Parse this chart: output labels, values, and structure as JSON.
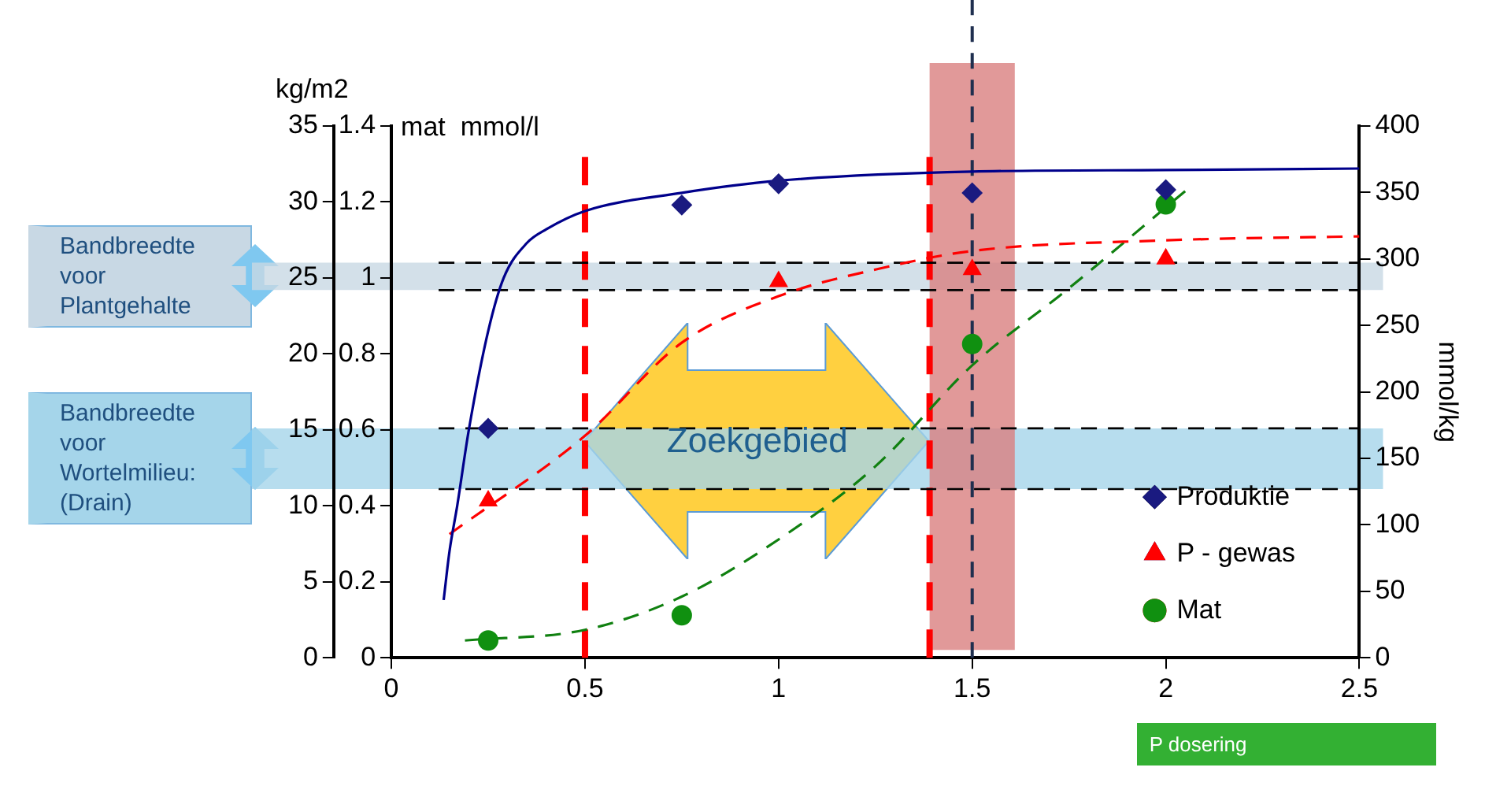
{
  "chart_data": {
    "type": "scatter",
    "xlabel": "P dosering",
    "ylabel": "kg/m2",
    "y2label": "mmol/kg",
    "y3label": "mat  mmol/l",
    "xlim": [
      0,
      2.5
    ],
    "xticks": [
      0,
      0.5,
      1,
      1.5,
      2,
      2.5
    ],
    "ylim": [
      0,
      35
    ],
    "yticks": [
      0,
      5,
      10,
      15,
      20,
      25,
      30,
      35
    ],
    "y2lim": [
      0,
      400
    ],
    "y2ticks": [
      0,
      50,
      100,
      150,
      200,
      250,
      300,
      350,
      400
    ],
    "y3lim": [
      0,
      1.4
    ],
    "y3ticks": [
      0,
      0.2,
      0.4,
      0.6,
      0.8,
      1,
      1.2,
      1.4
    ],
    "grid": false,
    "legend": "bottom right",
    "series": [
      {
        "name": "Produktie",
        "color": "#1a1a80",
        "marker": "diamond",
        "x": [
          0.25,
          0.75,
          1,
          1.5,
          2
        ],
        "values": [
          15.1,
          29.8,
          31.2,
          30.6,
          30.8
        ]
      },
      {
        "name": "P - gewas",
        "color": "#ff0000",
        "marker": "triangle",
        "axis": "y2",
        "x": [
          0.25,
          1,
          1.5,
          2
        ],
        "values": [
          118,
          283,
          292,
          300
        ]
      },
      {
        "name": "Mat",
        "color": "#109010",
        "marker": "circle",
        "axis": "y2",
        "x": [
          0.25,
          0.75,
          1.5,
          2
        ],
        "values": [
          13,
          32,
          236,
          341
        ]
      },
      {
        "type": "line",
        "color": "#00008b",
        "marker": "none",
        "line_style": "solid",
        "x": [
          0.135,
          0.15,
          0.17,
          0.2,
          0.25,
          0.29,
          0.35,
          0.4,
          0.5,
          0.75,
          1,
          1.5,
          2,
          2.5
        ],
        "values": [
          3.8,
          7,
          10,
          15,
          21.5,
          25,
          27.3,
          28.2,
          29.4,
          30.6,
          31.4,
          32,
          32.1,
          32.2
        ]
      },
      {
        "type": "line",
        "color": "#ff0000",
        "marker": "none",
        "line_style": "dashed",
        "axis": "y2",
        "x": [
          0.15,
          0.5,
          0.75,
          1,
          1.25,
          1.5,
          2,
          2.5
        ],
        "values": [
          93,
          167,
          237,
          272,
          292,
          306,
          314,
          317
        ]
      },
      {
        "type": "line",
        "color": "#108010",
        "marker": "none",
        "line_style": "dashed",
        "axis": "y2",
        "x": [
          0.19,
          0.5,
          0.75,
          1,
          1.25,
          1.5,
          1.75,
          2.05
        ],
        "values": [
          13,
          21,
          46,
          89,
          144,
          220,
          278,
          351
        ]
      }
    ],
    "bands": [
      {
        "axis": "y",
        "from": 24.2,
        "to": 26,
        "label": "Bandbreedte voor Plantgehalte",
        "color": "#c8d8e4"
      },
      {
        "axis": "y",
        "from": 11.1,
        "to": 15.1,
        "label": "Bandbreedte voor Wortelmilieu: (Drain)",
        "color": "#a5d5ea"
      },
      {
        "axis": "x",
        "from": 1.39,
        "to": 1.61,
        "color": "#d98080"
      }
    ],
    "ref_lines": [
      {
        "axis": "x",
        "value": 0.5,
        "color": "#ff0000",
        "line_style": "dashed"
      },
      {
        "axis": "x",
        "value": 1.39,
        "color": "#ff0000",
        "line_style": "dashed"
      },
      {
        "axis": "x",
        "value": 1.5,
        "color": "#1f2f4f",
        "line_style": "dashed"
      },
      {
        "axis": "y",
        "value": 26,
        "color": "#000000",
        "line_style": "dashed"
      },
      {
        "axis": "y",
        "value": 24.2,
        "color": "#000000",
        "line_style": "dashed"
      },
      {
        "axis": "y",
        "value": 15.1,
        "color": "#000000",
        "line_style": "dashed"
      },
      {
        "axis": "y",
        "value": 11.1,
        "color": "#000000",
        "line_style": "dashed"
      }
    ],
    "annotations": [
      "Zoekgebied"
    ]
  }
}
